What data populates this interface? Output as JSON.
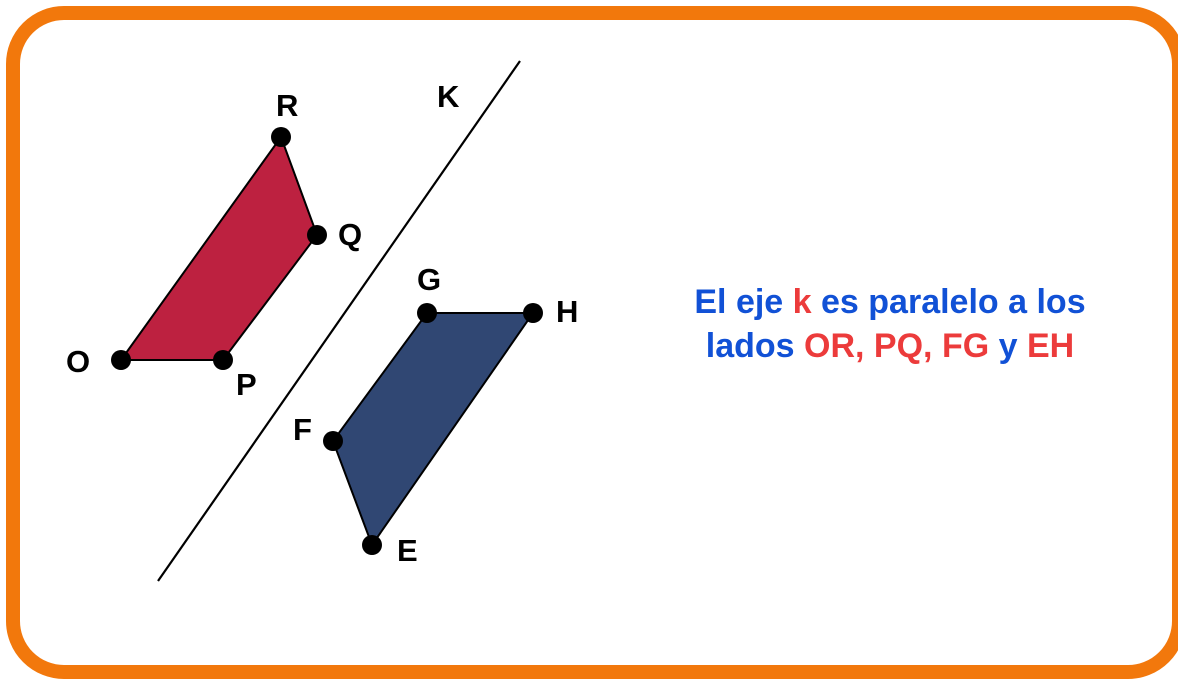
{
  "colors": {
    "frame": "#f2780c",
    "poly_red": "#bd2140",
    "poly_blue": "#304773",
    "text_blue": "#1151d6",
    "text_red": "#ec3b3b"
  },
  "labels": {
    "axis": "K",
    "R": "R",
    "Q": "Q",
    "O": "O",
    "P": "P",
    "G": "G",
    "H": "H",
    "F": "F",
    "E": "E"
  },
  "caption": {
    "part1": "El eje ",
    "k": "k",
    "part2": " es paralelo a los",
    "part3": "lados ",
    "or": "OR",
    "sep1": ", ",
    "pq": "PQ",
    "sep2": ", ",
    "fg": "FG",
    "sep3": " y ",
    "eh": "EH"
  }
}
